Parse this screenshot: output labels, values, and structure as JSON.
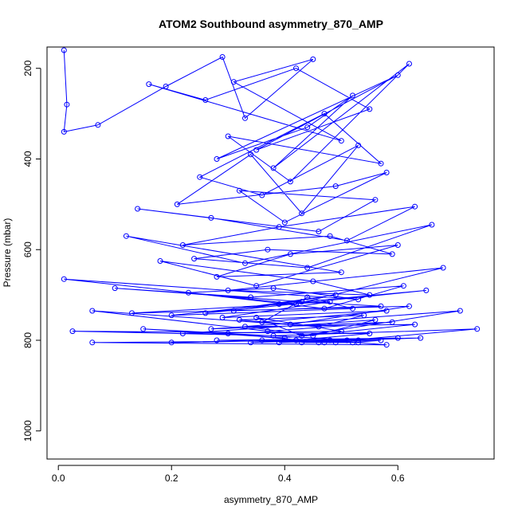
{
  "chart_data": {
    "type": "scatter",
    "title": "ATOM2 Southbound asymmetry_870_AMP",
    "xlabel": "asymmetry_870_AMP",
    "ylabel": "Pressure (mbar)",
    "xlim": [
      -0.02,
      0.77
    ],
    "ylim": [
      1062,
      153
    ],
    "y_reversed": true,
    "x_ticks": [
      0.0,
      0.2,
      0.4,
      0.6
    ],
    "x_tick_labels": [
      "0.0",
      "0.2",
      "0.4",
      "0.6"
    ],
    "y_ticks": [
      200,
      400,
      600,
      800,
      1000
    ],
    "y_tick_labels": [
      "200",
      "400",
      "600",
      "800",
      "1000"
    ],
    "grid": false,
    "legend": "none",
    "series_color": "#0000ff",
    "point_style": "open-circle-connected",
    "series": [
      {
        "x": [
          0.01,
          0.015,
          0.01,
          0.07,
          0.19,
          0.29,
          0.33,
          0.45,
          0.31,
          0.5,
          0.16,
          0.26,
          0.42,
          0.55,
          0.35,
          0.6,
          0.28,
          0.44,
          0.52,
          0.38,
          0.62,
          0.41,
          0.3,
          0.57,
          0.47,
          0.25,
          0.36,
          0.53,
          0.43,
          0.34,
          0.21,
          0.49,
          0.58,
          0.4,
          0.32,
          0.56,
          0.46,
          0.14,
          0.27,
          0.51,
          0.63,
          0.39,
          0.22,
          0.48,
          0.59,
          0.37,
          0.24,
          0.44,
          0.66,
          0.33,
          0.12,
          0.5,
          0.28,
          0.41,
          0.6,
          0.35,
          0.18,
          0.45,
          0.55,
          0.3,
          0.68,
          0.42,
          0.01,
          0.53,
          0.38,
          0.23,
          0.47,
          0.61,
          0.34,
          0.1,
          0.43,
          0.57,
          0.31,
          0.49,
          0.26,
          0.65,
          0.39,
          0.2,
          0.52,
          0.44,
          0.36,
          0.58,
          0.29,
          0.48,
          0.13,
          0.62,
          0.41,
          0.32,
          0.54,
          0.46,
          0.06,
          0.37,
          0.59,
          0.27,
          0.71,
          0.43,
          0.35,
          0.5,
          0.22,
          0.56,
          0.45,
          0.33,
          0.63,
          0.4,
          0.15,
          0.53,
          0.3,
          0.47,
          0.74,
          0.38,
          0.025,
          0.55,
          0.42,
          0.2,
          0.6,
          0.34,
          0.48,
          0.58,
          0.06,
          0.51,
          0.39,
          0.64,
          0.28,
          0.46,
          0.53,
          0.36,
          0.49,
          0.43,
          0.57,
          0.52
        ],
        "y": [
          160,
          280,
          340,
          325,
          240,
          175,
          310,
          180,
          230,
          360,
          235,
          270,
          200,
          290,
          380,
          215,
          400,
          330,
          260,
          420,
          190,
          450,
          350,
          410,
          300,
          440,
          480,
          370,
          520,
          390,
          500,
          460,
          430,
          540,
          470,
          490,
          560,
          510,
          530,
          580,
          505,
          550,
          590,
          570,
          610,
          600,
          620,
          640,
          545,
          630,
          570,
          650,
          660,
          610,
          590,
          680,
          625,
          670,
          700,
          690,
          640,
          720,
          665,
          710,
          685,
          695,
          730,
          680,
          705,
          685,
          715,
          725,
          735,
          700,
          740,
          690,
          720,
          745,
          730,
          705,
          760,
          735,
          750,
          715,
          740,
          725,
          765,
          755,
          745,
          770,
          735,
          780,
          760,
          775,
          735,
          790,
          750,
          780,
          785,
          755,
          790,
          770,
          765,
          795,
          775,
          800,
          785,
          805,
          775,
          790,
          780,
          785,
          800,
          805,
          795,
          805,
          800,
          810,
          805,
          800,
          805,
          795,
          800,
          805,
          805,
          800,
          805,
          805,
          800,
          805
        ]
      }
    ]
  }
}
